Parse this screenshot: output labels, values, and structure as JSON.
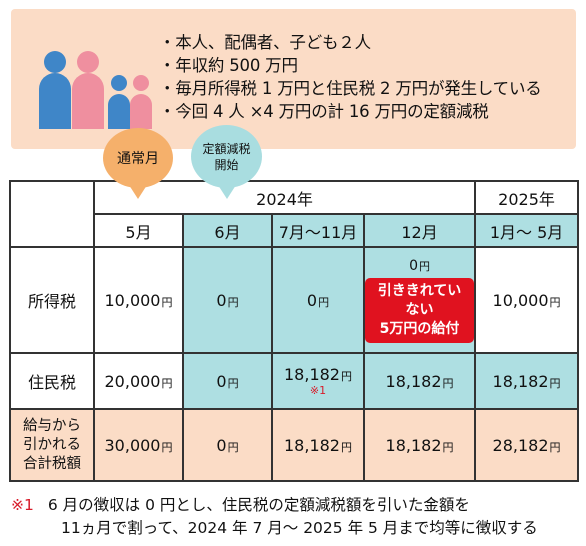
{
  "info": {
    "items": [
      "・本人、配偶者、子ども２人",
      "・年収約 500 万円",
      "・毎月所得税 1 万円と住民税 2 万円が発生している",
      "・今回 4 人 ×4 万円の計 16 万円の定額減税"
    ]
  },
  "bubbles": {
    "normal": "通常月",
    "start_line1": "定額減税",
    "start_line2": "開始"
  },
  "table": {
    "year_2024": "2024年",
    "year_2025": "2025年",
    "months": [
      "5月",
      "6月",
      "7月～11月",
      "12月",
      "1月～ 5月"
    ],
    "yen": "円",
    "income_tax": {
      "label": "所得税",
      "values": [
        "10,000",
        "0",
        "0",
        "0",
        "10,000"
      ],
      "red_line1": "引ききれていない",
      "red_line2": "5万円の給付"
    },
    "resident_tax": {
      "label": "住民税",
      "values": [
        "20,000",
        "0",
        "18,182",
        "18,182",
        "18,182"
      ],
      "note": "※1"
    },
    "total": {
      "label_line1": "給与から",
      "label_line2": "引かれる",
      "label_line3": "合計税額",
      "values": [
        "30,000",
        "0",
        "18,182",
        "18,182",
        "28,182"
      ]
    }
  },
  "footnote": {
    "mark": "※1",
    "line1": "6 月の徴収は 0 円とし、住民税の定額減税額を引いた金額を",
    "line2": "11ヵ月で割って、2024 年 7 月～ 2025 年 5 月まで均等に徴収する"
  },
  "colors": {
    "peach": "#fbdcc6",
    "blue": "#aedfe2",
    "orange": "#f5b06b",
    "red": "#e0121f",
    "person_blue": "#3f86c8",
    "person_pink": "#ef8f9f"
  }
}
